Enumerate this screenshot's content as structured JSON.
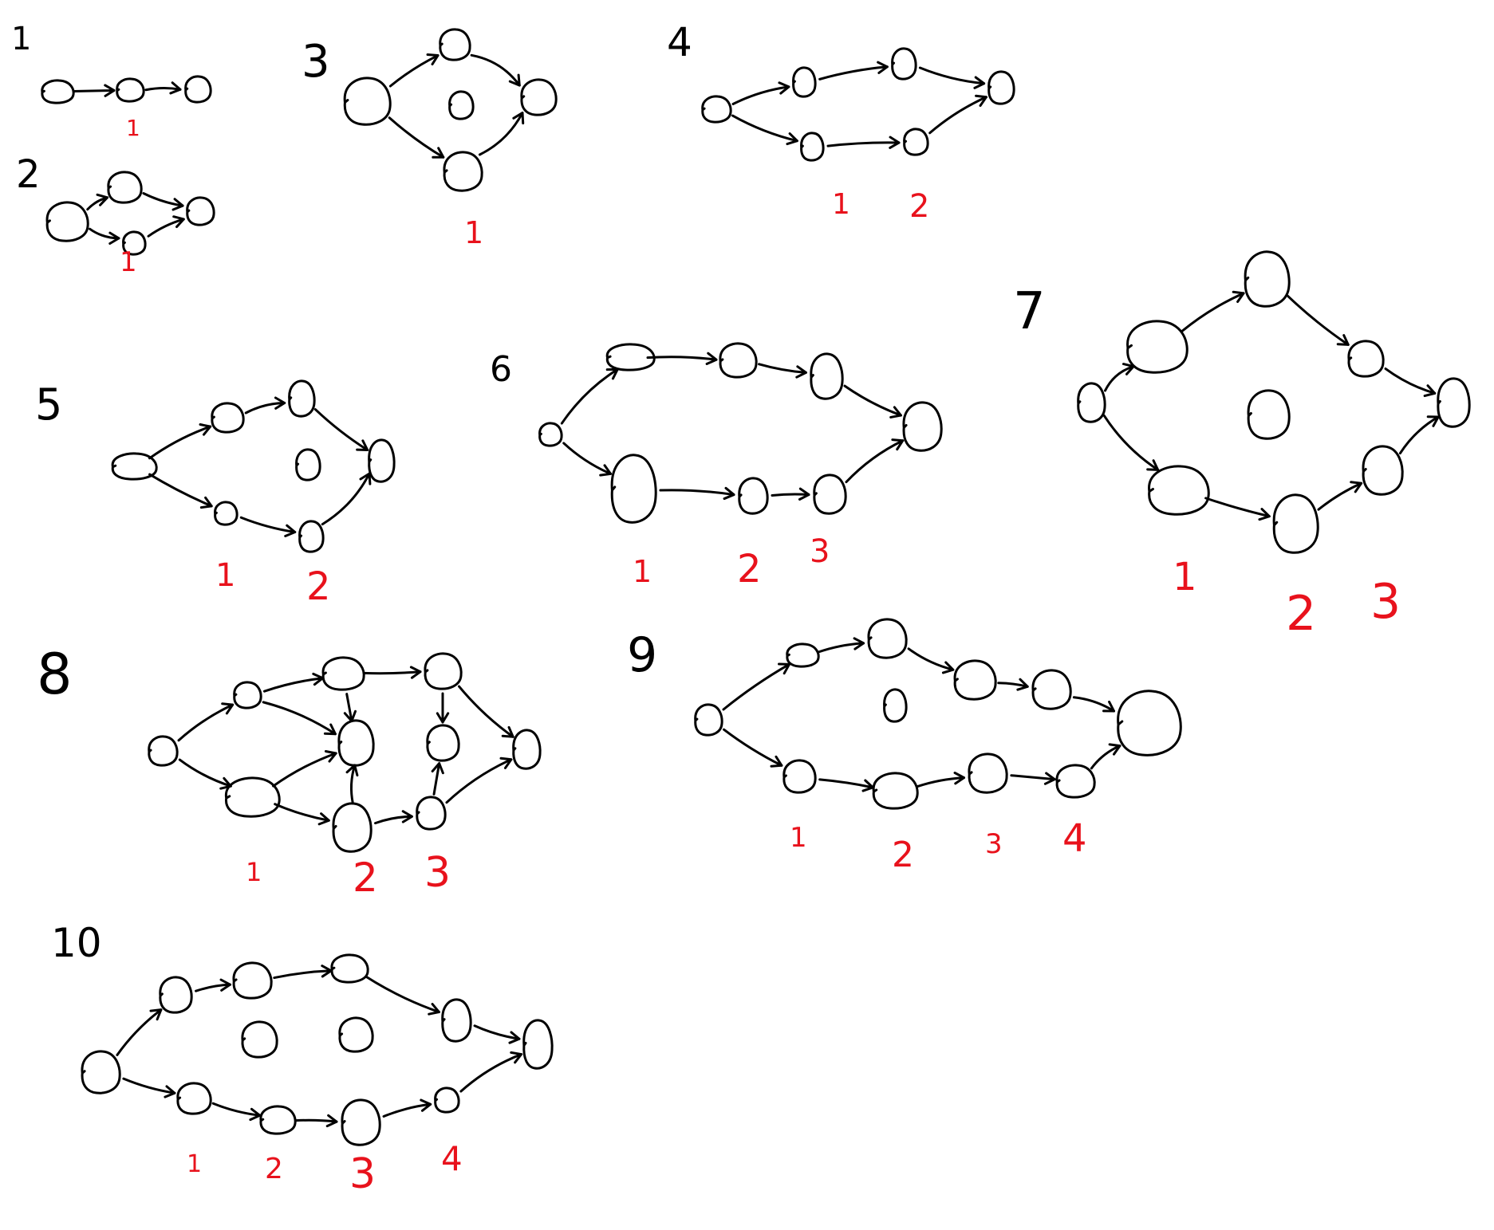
{
  "colors": {
    "ink": "#000000",
    "annotation": "#e8121c",
    "background": "#ffffff"
  },
  "diagrams": [
    {
      "id": "d1",
      "label": "1",
      "annotations": [
        "1"
      ]
    },
    {
      "id": "d2",
      "label": "2",
      "annotations": [
        "1"
      ]
    },
    {
      "id": "d3",
      "label": "3",
      "annotations": [
        "1"
      ]
    },
    {
      "id": "d4",
      "label": "4",
      "annotations": [
        "1",
        "2"
      ]
    },
    {
      "id": "d5",
      "label": "5",
      "annotations": [
        "1",
        "2"
      ]
    },
    {
      "id": "d6",
      "label": "6",
      "annotations": [
        "1",
        "2",
        "3"
      ]
    },
    {
      "id": "d7",
      "label": "7",
      "annotations": [
        "1",
        "2",
        "3"
      ]
    },
    {
      "id": "d8",
      "label": "8",
      "annotations": [
        "1",
        "2",
        "3"
      ]
    },
    {
      "id": "d9",
      "label": "9",
      "annotations": [
        "1",
        "2",
        "3",
        "4"
      ]
    },
    {
      "id": "d10",
      "label": "10",
      "annotations": [
        "1",
        "2",
        "3",
        "4"
      ]
    }
  ]
}
